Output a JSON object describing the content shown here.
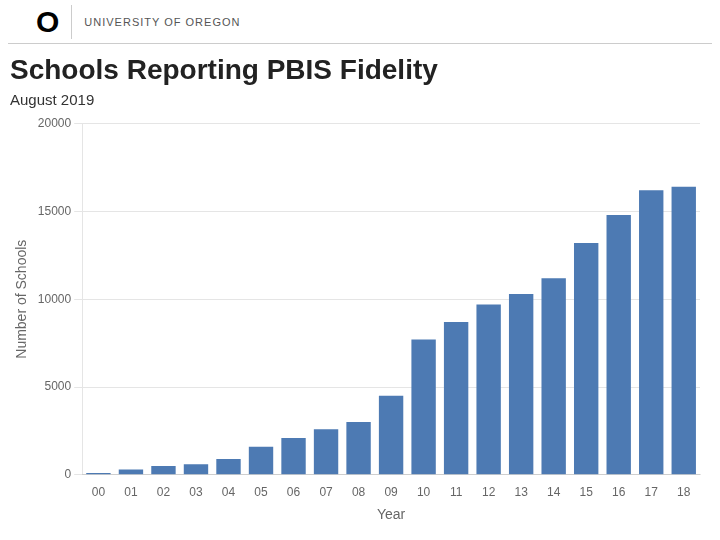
{
  "chart_data": {
    "type": "bar",
    "title": "Schools Reporting PBIS Fidelity",
    "subtitle": "August 2019",
    "annotations": [
      "O",
      "UNIVERSITY OF OREGON"
    ],
    "xlabel": "Year",
    "ylabel": "Number of Schools",
    "categories": [
      "00",
      "01",
      "02",
      "03",
      "04",
      "05",
      "06",
      "07",
      "08",
      "09",
      "10",
      "11",
      "12",
      "13",
      "14",
      "15",
      "16",
      "17",
      "18"
    ],
    "values": [
      100,
      300,
      500,
      600,
      900,
      1600,
      2100,
      2600,
      3000,
      4500,
      7700,
      8700,
      9700,
      10300,
      11200,
      13200,
      14800,
      16200,
      16400
    ],
    "color": "#4d7ab3",
    "ylim": [
      0,
      20000
    ],
    "yticks": [
      0,
      5000,
      10000,
      15000,
      20000
    ],
    "grid": true
  }
}
